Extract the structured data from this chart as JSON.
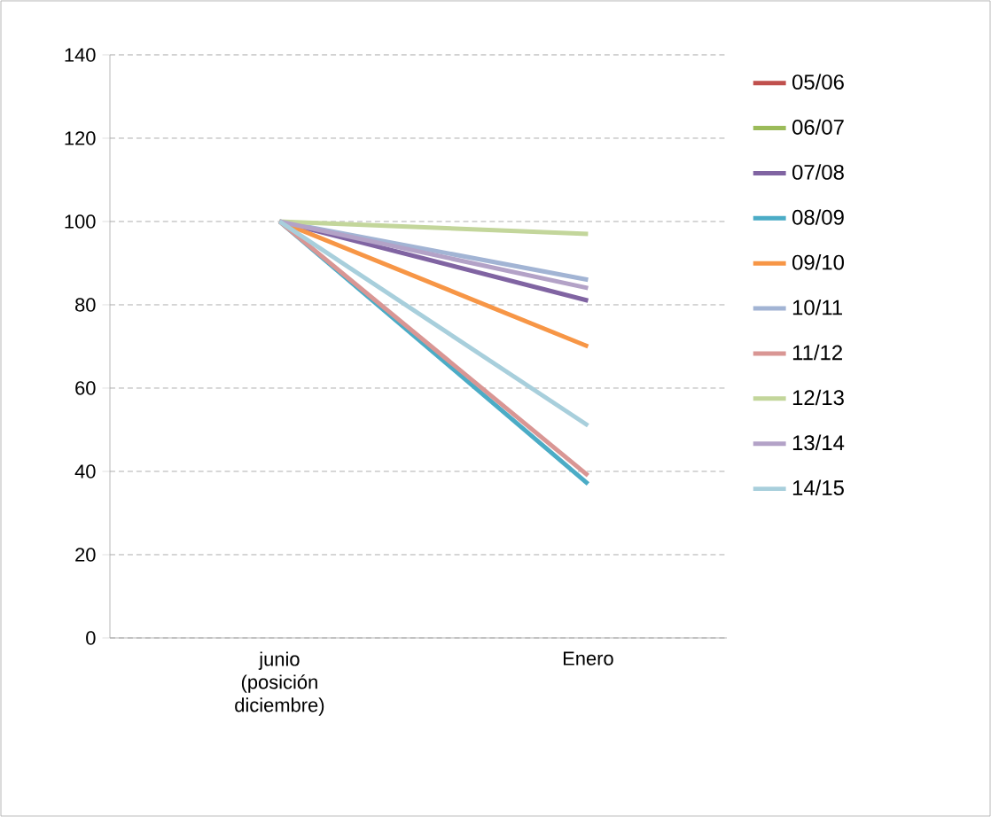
{
  "chart_data": {
    "type": "line",
    "categories": [
      "junio (posición diciembre)",
      "Enero"
    ],
    "ylim": [
      0,
      140
    ],
    "yticks": [
      0,
      20,
      40,
      60,
      80,
      100,
      120,
      140
    ],
    "grid": "y",
    "legend": "right",
    "line_style": "solid",
    "marker": "none",
    "series": [
      {
        "name": "05/06",
        "color": "#c0504d",
        "values": [
          null,
          null
        ]
      },
      {
        "name": "06/07",
        "color": "#9bbb59",
        "values": [
          null,
          null
        ]
      },
      {
        "name": "07/08",
        "color": "#8064a2",
        "values": [
          100,
          81
        ]
      },
      {
        "name": "08/09",
        "color": "#4bacc6",
        "values": [
          100,
          37
        ]
      },
      {
        "name": "09/10",
        "color": "#f79646",
        "values": [
          100,
          70
        ]
      },
      {
        "name": "10/11",
        "color": "#a2b4d4",
        "values": [
          100,
          86
        ]
      },
      {
        "name": "11/12",
        "color": "#d99694",
        "values": [
          100,
          39
        ]
      },
      {
        "name": "12/13",
        "color": "#c3d69b",
        "values": [
          100,
          97
        ]
      },
      {
        "name": "13/14",
        "color": "#b3a2c7",
        "values": [
          100,
          84
        ]
      },
      {
        "name": "14/15",
        "color": "#a8cfdc",
        "values": [
          100,
          51
        ]
      }
    ]
  }
}
